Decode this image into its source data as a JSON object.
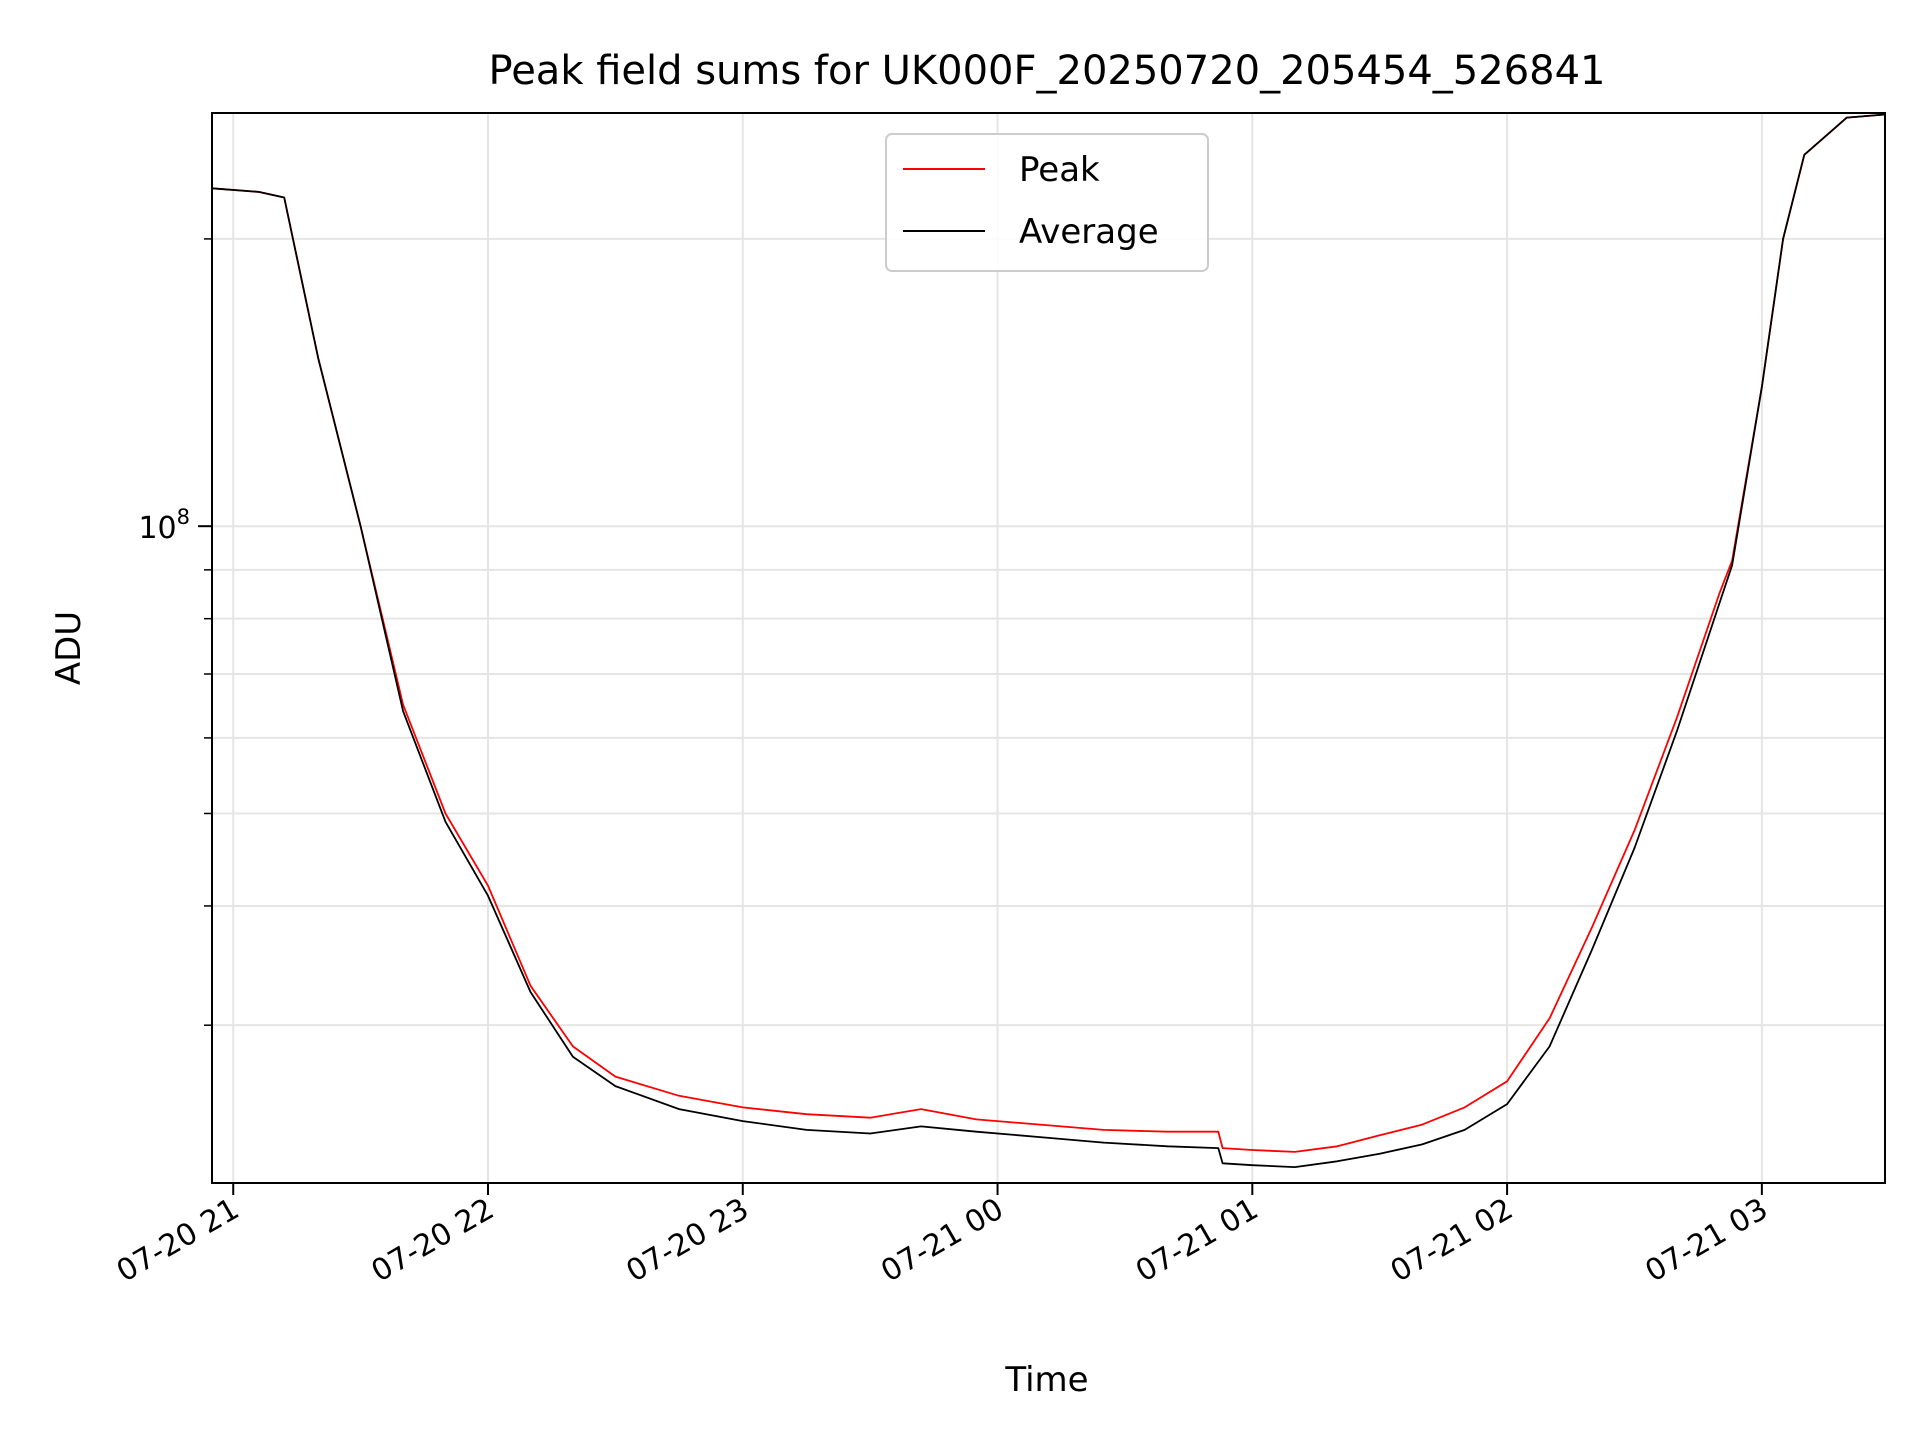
{
  "chart_data": {
    "type": "line",
    "title": "Peak field sums for UK000F_20250720_205454_526841",
    "xlabel": "Time",
    "ylabel": "ADU",
    "yscale": "log",
    "grid": true,
    "legend_placement": "upper-center",
    "x_ticks": [
      "07-20 21",
      "07-20 22",
      "07-20 23",
      "07-21 00",
      "07-21 01",
      "07-21 02",
      "07-21 03"
    ],
    "y_ticks": [
      {
        "label_base": "10",
        "label_exp": "8",
        "value": 100000000
      }
    ],
    "xlim": [
      "07-20 20:55",
      "07-21 03:29"
    ],
    "ylim": [
      20500000,
      271000000
    ],
    "series": [
      {
        "name": "Peak",
        "color": "#ff0000",
        "x": [
          "07-20 20:55",
          "07-20 21:06",
          "07-20 21:12",
          "07-20 21:20",
          "07-20 21:30",
          "07-20 21:40",
          "07-20 21:50",
          "07-20 22:00",
          "07-20 22:10",
          "07-20 22:20",
          "07-20 22:30",
          "07-20 22:45",
          "07-20 23:00",
          "07-20 23:15",
          "07-20 23:30",
          "07-20 23:42",
          "07-20 23:55",
          "07-21 00:10",
          "07-21 00:25",
          "07-21 00:40",
          "07-21 00:52",
          "07-21 00:53",
          "07-21 01:00",
          "07-21 01:10",
          "07-21 01:20",
          "07-21 01:30",
          "07-21 01:40",
          "07-21 01:50",
          "07-21 02:00",
          "07-21 02:10",
          "07-21 02:20",
          "07-21 02:30",
          "07-21 02:40",
          "07-21 02:50",
          "07-21 02:53",
          "07-21 03:00",
          "07-21 03:05",
          "07-21 03:10",
          "07-21 03:20",
          "07-21 03:29"
        ],
        "y": [
          226000000,
          224000000,
          221000000,
          150000000,
          100000000,
          65000000,
          50000000,
          42000000,
          33000000,
          28500000,
          26500000,
          25300000,
          24600000,
          24200000,
          24000000,
          24500000,
          23900000,
          23600000,
          23300000,
          23200000,
          23200000,
          22300000,
          22200000,
          22100000,
          22400000,
          23000000,
          23600000,
          24600000,
          26200000,
          30500000,
          38000000,
          48000000,
          63000000,
          85000000,
          92000000,
          140000000,
          200000000,
          245000000,
          268000000,
          270000000
        ]
      },
      {
        "name": "Average",
        "color": "#000000",
        "x": [
          "07-20 20:55",
          "07-20 21:06",
          "07-20 21:12",
          "07-20 21:20",
          "07-20 21:30",
          "07-20 21:40",
          "07-20 21:50",
          "07-20 22:00",
          "07-20 22:10",
          "07-20 22:20",
          "07-20 22:30",
          "07-20 22:45",
          "07-20 23:00",
          "07-20 23:15",
          "07-20 23:30",
          "07-20 23:42",
          "07-20 23:55",
          "07-21 00:10",
          "07-21 00:25",
          "07-21 00:40",
          "07-21 00:52",
          "07-21 00:53",
          "07-21 01:00",
          "07-21 01:10",
          "07-21 01:20",
          "07-21 01:30",
          "07-21 01:40",
          "07-21 01:50",
          "07-21 02:00",
          "07-21 02:10",
          "07-21 02:20",
          "07-21 02:30",
          "07-21 02:40",
          "07-21 02:50",
          "07-21 02:53",
          "07-21 03:00",
          "07-21 03:05",
          "07-21 03:10",
          "07-21 03:20",
          "07-21 03:29"
        ],
        "y": [
          226000000,
          224000000,
          221000000,
          150000000,
          100000000,
          64000000,
          49000000,
          41000000,
          32500000,
          27800000,
          25900000,
          24500000,
          23800000,
          23300000,
          23100000,
          23500000,
          23200000,
          22900000,
          22600000,
          22400000,
          22300000,
          21500000,
          21400000,
          21300000,
          21600000,
          22000000,
          22500000,
          23300000,
          24800000,
          28500000,
          36000000,
          46000000,
          61000000,
          83000000,
          91000000,
          140000000,
          200000000,
          245000000,
          268000000,
          270000000
        ]
      }
    ]
  }
}
